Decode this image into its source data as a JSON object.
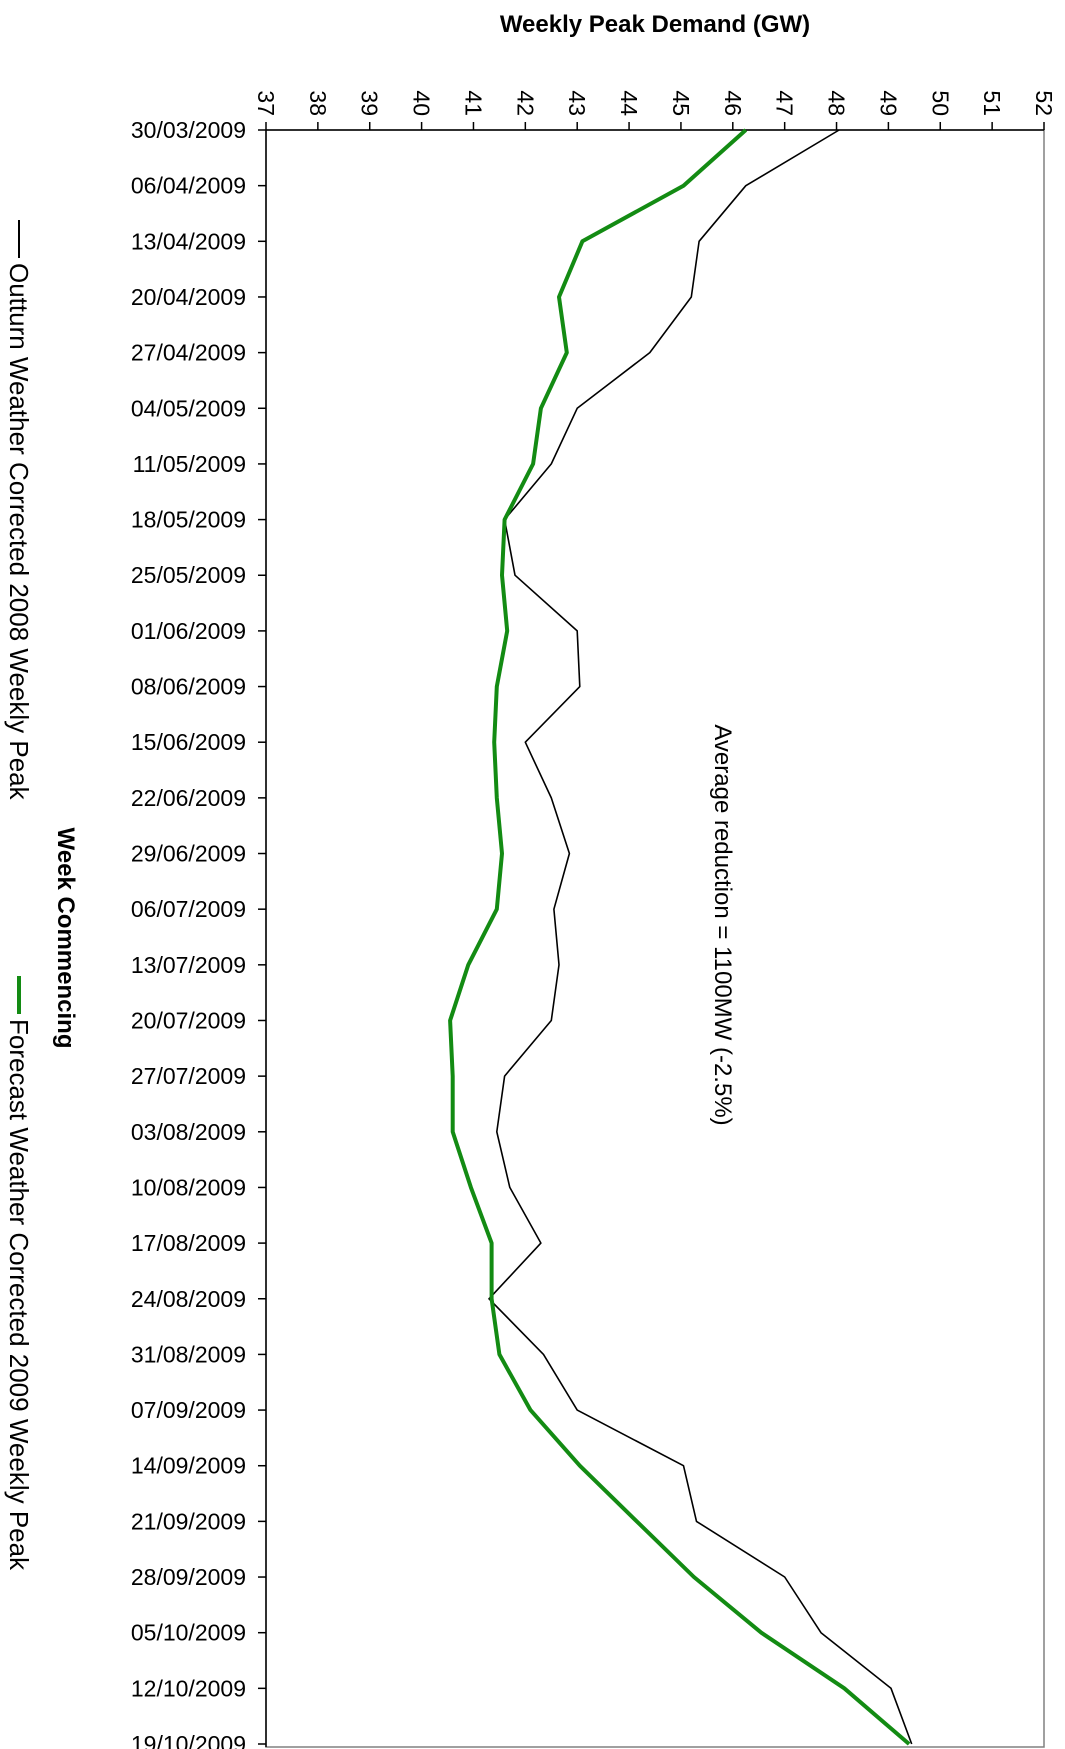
{
  "chart_data": {
    "type": "line",
    "orientation": "rotated 90 degrees clockwise (dates run top-to-bottom, demand increases left-to-right)",
    "title": "",
    "xlabel": "Week Commencing",
    "ylabel": "Weekly Peak Demand (GW)",
    "ylim": [
      37,
      52
    ],
    "y_ticks": [
      "37",
      "38",
      "39",
      "40",
      "41",
      "42",
      "43",
      "44",
      "45",
      "46",
      "47",
      "48",
      "49",
      "50",
      "51",
      "52"
    ],
    "grid": false,
    "legend_position": "left",
    "categories": [
      "30/03/2009",
      "06/04/2009",
      "13/04/2009",
      "20/04/2009",
      "27/04/2009",
      "04/05/2009",
      "11/05/2009",
      "18/05/2009",
      "25/05/2009",
      "01/06/2009",
      "08/06/2009",
      "15/06/2009",
      "22/06/2009",
      "29/06/2009",
      "06/07/2009",
      "13/07/2009",
      "20/07/2009",
      "27/07/2009",
      "03/08/2009",
      "10/08/2009",
      "17/08/2009",
      "24/08/2009",
      "31/08/2009",
      "07/09/2009",
      "14/09/2009",
      "21/09/2009",
      "28/09/2009",
      "05/10/2009",
      "12/10/2009",
      "19/10/2009"
    ],
    "series": [
      {
        "name": "Outturn Weather Corrected 2008 Weekly Peak",
        "color": "#000000",
        "values": [
          48.05,
          46.25,
          45.35,
          45.2,
          44.4,
          43.0,
          42.5,
          41.6,
          41.8,
          43.0,
          43.05,
          42.0,
          42.5,
          42.85,
          42.55,
          42.65,
          42.5,
          41.6,
          41.45,
          41.7,
          42.3,
          41.3,
          42.35,
          43.0,
          45.05,
          45.3,
          47.0,
          47.7,
          49.05,
          49.45
        ]
      },
      {
        "name": "Forecast Weather Corrected 2009 Weekly Peak",
        "color": "#138b13",
        "values": [
          46.25,
          45.05,
          43.1,
          42.65,
          42.8,
          42.3,
          42.15,
          41.6,
          41.55,
          41.65,
          41.45,
          41.4,
          41.45,
          41.55,
          41.45,
          40.9,
          40.55,
          40.6,
          40.6,
          40.95,
          41.35,
          41.35,
          41.5,
          42.1,
          43.05,
          44.15,
          45.25,
          46.55,
          48.15,
          49.4
        ]
      }
    ],
    "annotation": "Average reduction = 1100MW  (-2.5%)"
  }
}
